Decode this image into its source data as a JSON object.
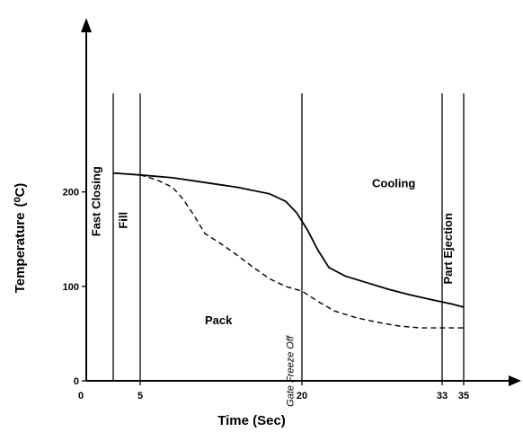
{
  "chart_data": {
    "type": "line",
    "xlabel": "Time (Sec)",
    "ylabel": "Temperature",
    "ylabel_unit": "(⁰C)",
    "x_ticks": [
      "0",
      "5",
      "20",
      "33",
      "35"
    ],
    "y_ticks": [
      "0",
      "100",
      "200"
    ],
    "xlim": [
      0,
      40
    ],
    "ylim": [
      0,
      350
    ],
    "grid": false,
    "phase_boundaries": [
      2.5,
      5,
      20,
      33,
      35
    ],
    "phase_labels": [
      {
        "text": "Fast Closing",
        "x": 1.3,
        "y": 190,
        "vertical": true,
        "italic": false
      },
      {
        "text": "Fill",
        "x": 3.8,
        "y": 170,
        "vertical": true,
        "italic": false
      },
      {
        "text": "Pack",
        "x": 11.0,
        "y": 60,
        "vertical": false,
        "italic": false
      },
      {
        "text": "Cooling",
        "x": 26.5,
        "y": 205,
        "vertical": false,
        "italic": false
      },
      {
        "text": "Part Ejection",
        "x": 33.9,
        "y": 140,
        "vertical": true,
        "italic": false
      },
      {
        "text": "Gate Freeze Off",
        "x": 19.2,
        "y": 10,
        "vertical": true,
        "italic": true
      }
    ],
    "series": [
      {
        "style": "solid",
        "x": [
          2.5,
          5,
          8,
          11,
          14,
          17,
          18.5,
          19.5,
          20.5,
          21.5,
          22.5,
          24,
          26,
          28,
          30,
          32,
          34,
          35
        ],
        "y": [
          220,
          218,
          215,
          210,
          205,
          198,
          190,
          178,
          160,
          138,
          120,
          111,
          104,
          97,
          91,
          86,
          81,
          78
        ]
      },
      {
        "style": "dashed",
        "x": [
          2.5,
          5,
          6.5,
          8,
          9,
          10,
          11,
          12.5,
          14,
          15.5,
          17,
          18.5,
          20,
          21.5,
          23,
          25,
          27,
          29,
          31,
          33,
          35
        ],
        "y": [
          220,
          218,
          213,
          205,
          192,
          175,
          156,
          145,
          133,
          120,
          108,
          100,
          95,
          84,
          74,
          67,
          62,
          58,
          56,
          56,
          56
        ]
      }
    ]
  }
}
